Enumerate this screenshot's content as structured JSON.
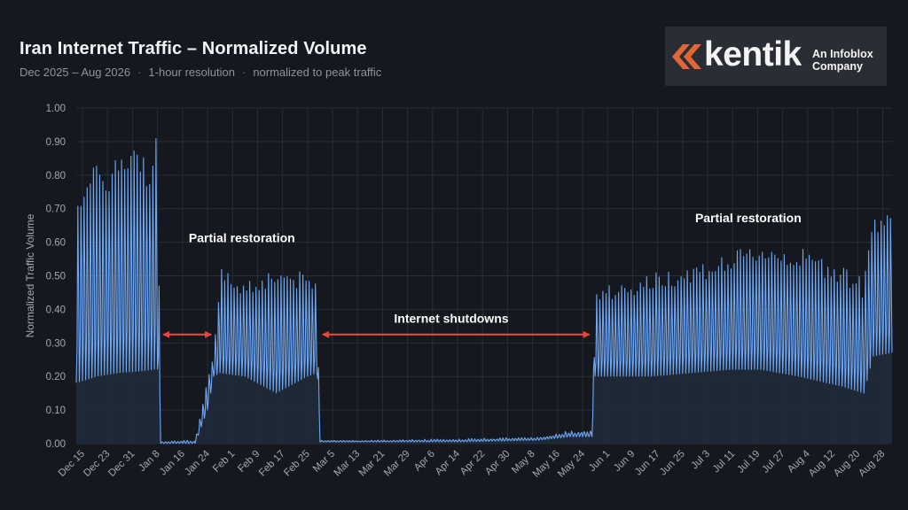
{
  "header": {
    "title": "Iran Internet Traffic – Normalized Volume",
    "subtitle_parts": [
      "Dec 2025 – Aug 2026",
      "1-hour resolution",
      "normalized to peak traffic"
    ],
    "separator": "·"
  },
  "logo": {
    "wordmark": "kentik",
    "tagline_line1": "An Infoblox",
    "tagline_line2": "Company",
    "icon": "kentik-chevrons-icon",
    "mark_color": "#e2663a"
  },
  "colors": {
    "series": "#6ea8f7",
    "fill": "#1f2a3a",
    "arrow": "#e8453c",
    "grid": "#2a2e35"
  },
  "chart_data": {
    "type": "area",
    "title": "Iran Internet Traffic – Normalized Volume",
    "ylabel": "Normalized Traffic Volume",
    "xlabel": "",
    "ylim": [
      0,
      1.0
    ],
    "yticks": [
      "0.00",
      "0.10",
      "0.20",
      "0.30",
      "0.40",
      "0.50",
      "0.60",
      "0.70",
      "0.80",
      "0.90",
      "1.00"
    ],
    "xlim": [
      "2025-12-13",
      "2026-08-31"
    ],
    "xticks": [
      "Dec 15",
      "Dec 23",
      "Dec 31",
      "Jan 8",
      "Jan 16",
      "Jan 24",
      "Feb 1",
      "Feb 9",
      "Feb 17",
      "Feb 25",
      "Mar 5",
      "Mar 13",
      "Mar 21",
      "Mar 29",
      "Apr 6",
      "Apr 14",
      "Apr 22",
      "Apr 30",
      "May 8",
      "May 16",
      "May 24",
      "Jun 1",
      "Jun 9",
      "Jun 17",
      "Jun 25",
      "Jul 3",
      "Jul 11",
      "Jul 19",
      "Jul 27",
      "Aug 4",
      "Aug 12",
      "Aug 20",
      "Aug 28"
    ],
    "grid": true,
    "legend": "none",
    "series": [
      {
        "envelope": {
          "dates": [
            "2025-12-13",
            "2025-12-20",
            "2025-12-27",
            "2026-01-03",
            "2026-01-07",
            "2026-01-08",
            "2026-01-09",
            "2026-01-20",
            "2026-01-24",
            "2026-01-26",
            "2026-01-28",
            "2026-02-05",
            "2026-02-15",
            "2026-02-25",
            "2026-02-28",
            "2026-03-01",
            "2026-03-15",
            "2026-04-15",
            "2026-05-10",
            "2026-05-20",
            "2026-05-27",
            "2026-05-28",
            "2026-06-15",
            "2026-07-10",
            "2026-07-20",
            "2026-08-01",
            "2026-08-15",
            "2026-08-22",
            "2026-08-25",
            "2026-08-31"
          ],
          "peak": [
            0.83,
            0.86,
            0.91,
            0.92,
            0.9,
            1.0,
            0.01,
            0.01,
            0.2,
            0.28,
            0.54,
            0.5,
            0.55,
            0.52,
            0.5,
            0.01,
            0.01,
            0.015,
            0.02,
            0.04,
            0.04,
            0.47,
            0.52,
            0.58,
            0.62,
            0.6,
            0.56,
            0.5,
            0.72,
            0.75
          ],
          "trough": [
            0.18,
            0.2,
            0.21,
            0.215,
            0.22,
            0.22,
            0.0,
            0.0,
            0.1,
            0.2,
            0.21,
            0.2,
            0.15,
            0.2,
            0.21,
            0.005,
            0.005,
            0.005,
            0.01,
            0.02,
            0.02,
            0.2,
            0.2,
            0.22,
            0.22,
            0.2,
            0.17,
            0.15,
            0.26,
            0.27
          ]
        }
      }
    ],
    "annotations": [
      {
        "text": "Partial restoration",
        "x": "2026-02-04",
        "y": 0.6
      },
      {
        "text": "Internet shutdowns",
        "x": "2026-04-12",
        "y": 0.36
      },
      {
        "text": "Partial restoration",
        "x": "2026-07-16",
        "y": 0.66
      }
    ],
    "arrows": [
      {
        "from": "2026-01-09",
        "to": "2026-01-26",
        "y": 0.325
      },
      {
        "from": "2026-03-01",
        "to": "2026-05-27",
        "y": 0.325
      }
    ]
  }
}
